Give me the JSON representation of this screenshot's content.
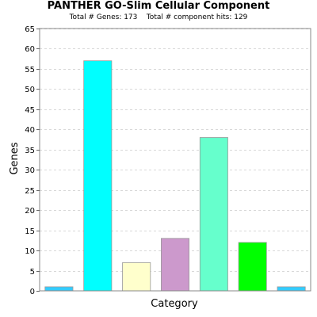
{
  "chart_data": {
    "type": "bar",
    "title": "PANTHER GO-Slim Cellular Component",
    "subtitle_parts": [
      "Total # Genes: 173",
      "Total # component hits: 129"
    ],
    "xlabel": "Category",
    "ylabel": "Genes",
    "ylim": [
      0,
      65
    ],
    "yticks": [
      0,
      5,
      10,
      15,
      20,
      25,
      30,
      35,
      40,
      45,
      50,
      55,
      60,
      65
    ],
    "grid": true,
    "values": [
      1,
      57,
      7,
      13,
      38,
      12,
      1
    ],
    "colors": [
      "#33ccff",
      "#00ffff",
      "#ffffcc",
      "#cc99cc",
      "#66ffcc",
      "#00ff00",
      "#33ccff"
    ]
  }
}
